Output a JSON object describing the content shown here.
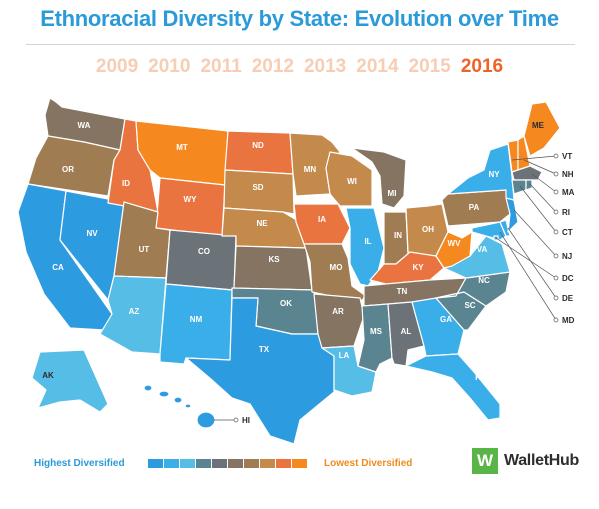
{
  "title": "Ethnoracial Diversity by State: Evolution over Time",
  "years": [
    "2009",
    "2010",
    "2011",
    "2012",
    "2013",
    "2014",
    "2015",
    "2016"
  ],
  "active_year": "2016",
  "palette": [
    "#2d9be0",
    "#3aaee8",
    "#56bde6",
    "#5b8491",
    "#6b7278",
    "#857462",
    "#a07c52",
    "#c48a4c",
    "#e9743f",
    "#f5881f"
  ],
  "states": [
    {
      "abbr": "WA",
      "color": "#857462"
    },
    {
      "abbr": "OR",
      "color": "#a07c52"
    },
    {
      "abbr": "CA",
      "color": "#2d9be0"
    },
    {
      "abbr": "NV",
      "color": "#2d9be0"
    },
    {
      "abbr": "ID",
      "color": "#e9743f"
    },
    {
      "abbr": "MT",
      "color": "#f5881f"
    },
    {
      "abbr": "WY",
      "color": "#e9743f"
    },
    {
      "abbr": "UT",
      "color": "#a07c52"
    },
    {
      "abbr": "AZ",
      "color": "#56bde6"
    },
    {
      "abbr": "CO",
      "color": "#6b7278"
    },
    {
      "abbr": "NM",
      "color": "#3aaee8"
    },
    {
      "abbr": "ND",
      "color": "#e9743f"
    },
    {
      "abbr": "SD",
      "color": "#c48a4c"
    },
    {
      "abbr": "NE",
      "color": "#c48a4c"
    },
    {
      "abbr": "KS",
      "color": "#857462"
    },
    {
      "abbr": "OK",
      "color": "#5b8491"
    },
    {
      "abbr": "TX",
      "color": "#2d9be0"
    },
    {
      "abbr": "MN",
      "color": "#c48a4c"
    },
    {
      "abbr": "IA",
      "color": "#e9743f"
    },
    {
      "abbr": "MO",
      "color": "#a07c52"
    },
    {
      "abbr": "AR",
      "color": "#857462"
    },
    {
      "abbr": "LA",
      "color": "#56bde6"
    },
    {
      "abbr": "WI",
      "color": "#c48a4c"
    },
    {
      "abbr": "IL",
      "color": "#3aaee8"
    },
    {
      "abbr": "MI",
      "color": "#857462"
    },
    {
      "abbr": "IN",
      "color": "#a07c52"
    },
    {
      "abbr": "OH",
      "color": "#c48a4c"
    },
    {
      "abbr": "KY",
      "color": "#e9743f"
    },
    {
      "abbr": "TN",
      "color": "#857462"
    },
    {
      "abbr": "MS",
      "color": "#5b8491"
    },
    {
      "abbr": "AL",
      "color": "#6b7278"
    },
    {
      "abbr": "GA",
      "color": "#3aaee8"
    },
    {
      "abbr": "FL",
      "color": "#3aaee8"
    },
    {
      "abbr": "SC",
      "color": "#5b8491"
    },
    {
      "abbr": "NC",
      "color": "#5b8491"
    },
    {
      "abbr": "VA",
      "color": "#56bde6"
    },
    {
      "abbr": "WV",
      "color": "#f5881f"
    },
    {
      "abbr": "PA",
      "color": "#a07c52"
    },
    {
      "abbr": "NY",
      "color": "#3aaee8"
    },
    {
      "abbr": "ME",
      "color": "#f5881f"
    },
    {
      "abbr": "VT",
      "color": "#f5881f"
    },
    {
      "abbr": "NH",
      "color": "#f5881f"
    },
    {
      "abbr": "MA",
      "color": "#6b7278"
    },
    {
      "abbr": "RI",
      "color": "#5b8491"
    },
    {
      "abbr": "CT",
      "color": "#5b8491"
    },
    {
      "abbr": "NJ",
      "color": "#2d9be0"
    },
    {
      "abbr": "DE",
      "color": "#3aaee8"
    },
    {
      "abbr": "MD",
      "color": "#3aaee8"
    },
    {
      "abbr": "DC",
      "color": "#2d9be0"
    },
    {
      "abbr": "AK",
      "color": "#56bde6"
    },
    {
      "abbr": "HI",
      "color": "#2d9be0"
    }
  ],
  "legend": {
    "high_label": "Highest Diversified",
    "low_label": "Lowest Diversified"
  },
  "brand": {
    "icon_letter": "W",
    "name": "WalletHub"
  }
}
